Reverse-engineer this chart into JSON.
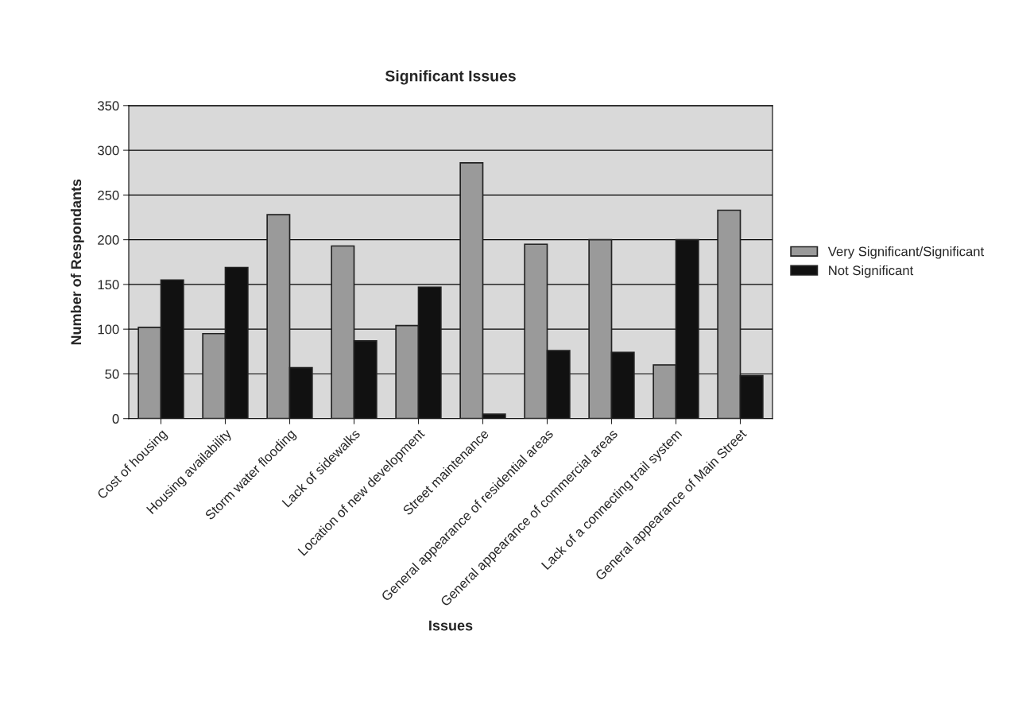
{
  "chart_data": {
    "type": "bar",
    "title": "Significant Issues",
    "xlabel": "Issues",
    "ylabel": "Number of Respondants",
    "categories": [
      "Cost of housing",
      "Housing availability",
      "Storm water flooding",
      "Lack of sidewalks",
      "Location of new development",
      "Street maintenance",
      "General appearance of residential areas",
      "General appearance of commercial areas",
      "Lack of a connecting trail system",
      "General appearance of Main Street"
    ],
    "series": [
      {
        "name": "Very Significant/Significant",
        "color": "#9a9a9a",
        "values": [
          102,
          95,
          228,
          193,
          104,
          286,
          195,
          200,
          60,
          233
        ]
      },
      {
        "name": "Not Significant",
        "color": "#111111",
        "values": [
          155,
          169,
          57,
          87,
          147,
          5,
          76,
          74,
          200,
          48
        ]
      }
    ],
    "ylim": [
      0,
      350
    ],
    "yticks": [
      0,
      50,
      100,
      150,
      200,
      250,
      300,
      350
    ],
    "grid": "y",
    "legend": "right"
  }
}
